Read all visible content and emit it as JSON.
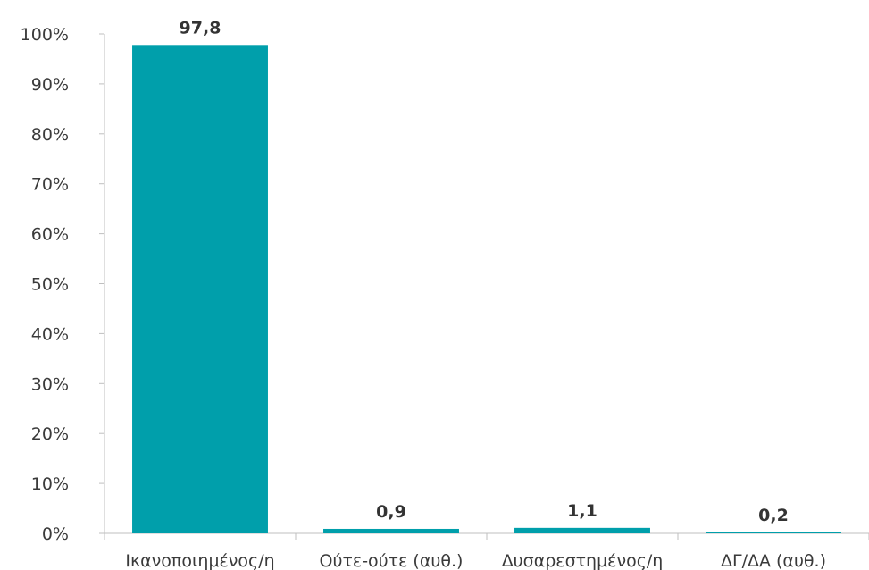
{
  "chart_data": {
    "type": "bar",
    "categories": [
      "Ικανοποιημένος/η",
      "Ούτε-ούτε (αυθ.)",
      "Δυσαρεστημένος/η",
      "ΔΓ/ΔΑ (αυθ.)"
    ],
    "values": [
      97.8,
      0.9,
      1.1,
      0.2
    ],
    "value_labels": [
      "97,8",
      "0,9",
      "1,1",
      "0,2"
    ],
    "ylim": [
      0,
      100
    ],
    "yticks": [
      0,
      10,
      20,
      30,
      40,
      50,
      60,
      70,
      80,
      90,
      100
    ],
    "ytick_labels": [
      "0%",
      "10%",
      "20%",
      "30%",
      "40%",
      "50%",
      "60%",
      "70%",
      "80%",
      "90%",
      "100%"
    ],
    "grid": false,
    "legend": "none",
    "bar_color": "#009fab"
  }
}
